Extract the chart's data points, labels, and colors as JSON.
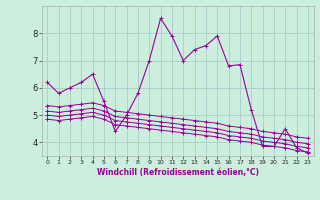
{
  "xlabel": "Windchill (Refroidissement éolien,°C)",
  "background_color": "#cceedd",
  "grid_color": "#aacccc",
  "line_color": "#990099",
  "xlim": [
    -0.5,
    23.5
  ],
  "ylim": [
    3.5,
    9.0
  ],
  "yticks": [
    4,
    5,
    6,
    7,
    8
  ],
  "xticks": [
    0,
    1,
    2,
    3,
    4,
    5,
    6,
    7,
    8,
    9,
    10,
    11,
    12,
    13,
    14,
    15,
    16,
    17,
    18,
    19,
    20,
    21,
    22,
    23
  ],
  "series1": [
    6.2,
    5.8,
    6.0,
    6.2,
    6.5,
    5.5,
    4.4,
    5.0,
    5.8,
    7.0,
    8.55,
    7.9,
    7.0,
    7.4,
    7.55,
    7.9,
    6.8,
    6.85,
    5.2,
    3.85,
    3.85,
    4.5,
    3.8,
    3.6
  ],
  "series2": [
    5.35,
    5.3,
    5.35,
    5.4,
    5.45,
    5.35,
    5.15,
    5.1,
    5.05,
    5.0,
    4.95,
    4.9,
    4.85,
    4.8,
    4.75,
    4.7,
    4.6,
    4.55,
    4.5,
    4.4,
    4.35,
    4.3,
    4.2,
    4.15
  ],
  "series3": [
    5.15,
    5.1,
    5.15,
    5.2,
    5.25,
    5.15,
    4.95,
    4.9,
    4.85,
    4.8,
    4.75,
    4.7,
    4.65,
    4.6,
    4.55,
    4.5,
    4.4,
    4.35,
    4.3,
    4.2,
    4.15,
    4.1,
    4.0,
    3.95
  ],
  "series4": [
    5.0,
    4.95,
    5.0,
    5.05,
    5.1,
    5.0,
    4.8,
    4.75,
    4.7,
    4.65,
    4.6,
    4.55,
    4.5,
    4.45,
    4.4,
    4.35,
    4.25,
    4.2,
    4.15,
    4.05,
    4.0,
    3.95,
    3.85,
    3.8
  ],
  "series5": [
    4.85,
    4.8,
    4.85,
    4.9,
    4.95,
    4.85,
    4.65,
    4.6,
    4.55,
    4.5,
    4.45,
    4.4,
    4.35,
    4.3,
    4.25,
    4.2,
    4.1,
    4.05,
    4.0,
    3.9,
    3.85,
    3.8,
    3.7,
    3.65
  ]
}
